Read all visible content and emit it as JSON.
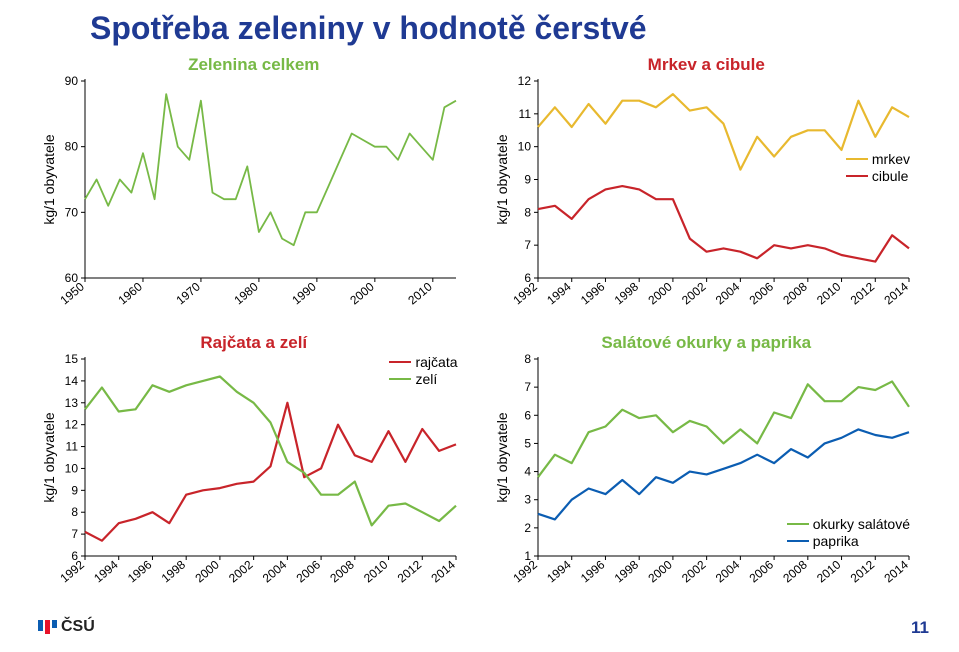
{
  "page": {
    "title": "Spotřeba zeleniny v hodnotě čerstvé",
    "number": "11",
    "footer_logo": "ČSÚ",
    "logo_bar_colors": [
      "#0b5db2",
      "#e8122a",
      "#0b5db2"
    ]
  },
  "colors": {
    "zelenina": "#77b946",
    "mrkev": "#e8b92f",
    "cibule": "#c8242a",
    "rajcata": "#c8242a",
    "zeli": "#77b946",
    "okurky": "#77b946",
    "paprika": "#0b5db2",
    "axis": "#000000",
    "background": "#ffffff"
  },
  "typography": {
    "title_fontsize": 32,
    "title_weight": 700,
    "chart_title_fontsize": 17,
    "axis_fontsize": 12,
    "y_title_fontsize": 14,
    "font_family": "Arial"
  },
  "chart1": {
    "type": "line",
    "title": "Zelenina celkem",
    "title_color": "#77b946",
    "y_title": "kg/1 obyvatele",
    "ylim": [
      60,
      90
    ],
    "ytick_step": 10,
    "x_ticks": [
      1950,
      1960,
      1970,
      1980,
      1990,
      2000,
      2010
    ],
    "x_range": [
      1950,
      2014
    ],
    "line_width": 1.8,
    "series": [
      {
        "name": "zelenina",
        "color": "#77b946",
        "x": [
          1950,
          1952,
          1954,
          1956,
          1958,
          1960,
          1962,
          1964,
          1966,
          1968,
          1970,
          1972,
          1974,
          1976,
          1978,
          1980,
          1982,
          1984,
          1986,
          1988,
          1990,
          1992,
          1994,
          1996,
          1998,
          2000,
          2002,
          2004,
          2006,
          2008,
          2010,
          2012,
          2014
        ],
        "y": [
          72,
          75,
          71,
          75,
          73,
          79,
          72,
          88,
          80,
          78,
          87,
          73,
          72,
          72,
          77,
          67,
          70,
          66,
          65,
          70,
          70,
          74,
          78,
          82,
          81,
          80,
          80,
          78,
          82,
          80,
          78,
          86,
          87
        ]
      }
    ]
  },
  "chart2": {
    "type": "line",
    "title": "Mrkev a cibule",
    "title_color": "#c8242a",
    "y_title": "kg/1 obyvatele",
    "ylim": [
      6,
      12
    ],
    "ytick_step": 1,
    "x_ticks": [
      1992,
      1994,
      1996,
      1998,
      2000,
      2002,
      2004,
      2006,
      2008,
      2010,
      2012,
      2014
    ],
    "x_range": [
      1992,
      2014
    ],
    "line_width": 2.2,
    "legend": {
      "mrkev": "mrkev",
      "cibule": "cibule",
      "pos": "right-mid"
    },
    "series": [
      {
        "name": "mrkev",
        "color": "#e8b92f",
        "x": [
          1992,
          1993,
          1994,
          1995,
          1996,
          1997,
          1998,
          1999,
          2000,
          2001,
          2002,
          2003,
          2004,
          2005,
          2006,
          2007,
          2008,
          2009,
          2010,
          2011,
          2012,
          2013,
          2014
        ],
        "y": [
          10.6,
          11.2,
          10.6,
          11.3,
          10.7,
          11.4,
          11.4,
          11.2,
          11.6,
          11.1,
          11.2,
          10.7,
          9.3,
          10.3,
          9.7,
          10.3,
          10.5,
          10.5,
          9.9,
          11.4,
          10.3,
          11.2,
          10.9
        ]
      },
      {
        "name": "cibule",
        "color": "#c8242a",
        "x": [
          1992,
          1993,
          1994,
          1995,
          1996,
          1997,
          1998,
          1999,
          2000,
          2001,
          2002,
          2003,
          2004,
          2005,
          2006,
          2007,
          2008,
          2009,
          2010,
          2011,
          2012,
          2013,
          2014
        ],
        "y": [
          8.1,
          8.2,
          7.8,
          8.4,
          8.7,
          8.8,
          8.7,
          8.4,
          8.4,
          7.2,
          6.8,
          6.9,
          6.8,
          6.6,
          7.0,
          6.9,
          7.0,
          6.9,
          6.7,
          6.6,
          6.5,
          7.3,
          6.9
        ]
      }
    ]
  },
  "chart3": {
    "type": "line",
    "title": "Rajčata a zelí",
    "title_color": "#c8242a",
    "y_title": "kg/1 obyvatele",
    "ylim": [
      6,
      15
    ],
    "ytick_step": 1,
    "x_ticks": [
      1992,
      1994,
      1996,
      1998,
      2000,
      2002,
      2004,
      2006,
      2008,
      2010,
      2012,
      2014
    ],
    "x_range": [
      1992,
      2014
    ],
    "line_width": 2.2,
    "legend": {
      "rajcata": "rajčata",
      "zeli": "zelí",
      "pos": "topright"
    },
    "series": [
      {
        "name": "rajcata",
        "color": "#c8242a",
        "x": [
          1992,
          1993,
          1994,
          1995,
          1996,
          1997,
          1998,
          1999,
          2000,
          2001,
          2002,
          2003,
          2004,
          2005,
          2006,
          2007,
          2008,
          2009,
          2010,
          2011,
          2012,
          2013,
          2014
        ],
        "y": [
          7.1,
          6.7,
          7.5,
          7.7,
          8.0,
          7.5,
          8.8,
          9.0,
          9.1,
          9.3,
          9.4,
          10.1,
          13.0,
          9.6,
          10.0,
          12.0,
          10.6,
          10.3,
          11.7,
          10.3,
          11.8,
          10.8,
          11.1
        ]
      },
      {
        "name": "zeli",
        "color": "#77b946",
        "x": [
          1992,
          1993,
          1994,
          1995,
          1996,
          1997,
          1998,
          1999,
          2000,
          2001,
          2002,
          2003,
          2004,
          2005,
          2006,
          2007,
          2008,
          2009,
          2010,
          2011,
          2012,
          2013,
          2014
        ],
        "y": [
          12.7,
          13.7,
          12.6,
          12.7,
          13.8,
          13.5,
          13.8,
          14.0,
          14.2,
          13.5,
          13.0,
          12.1,
          10.3,
          9.8,
          8.8,
          8.8,
          9.4,
          7.4,
          8.3,
          8.4,
          8.0,
          7.6,
          8.3
        ]
      }
    ]
  },
  "chart4": {
    "type": "line",
    "title": "Salátové okurky a paprika",
    "title_color": "#77b946",
    "y_title": "kg/1 obyvatele",
    "ylim": [
      1,
      8
    ],
    "ytick_step": 1,
    "x_ticks": [
      1992,
      1994,
      1996,
      1998,
      2000,
      2002,
      2004,
      2006,
      2008,
      2010,
      2012,
      2014
    ],
    "x_range": [
      1992,
      2014
    ],
    "line_width": 2.2,
    "legend": {
      "okurky": "okurky salátové",
      "paprika": "paprika",
      "pos": "bottomright"
    },
    "series": [
      {
        "name": "okurky",
        "color": "#77b946",
        "x": [
          1992,
          1993,
          1994,
          1995,
          1996,
          1997,
          1998,
          1999,
          2000,
          2001,
          2002,
          2003,
          2004,
          2005,
          2006,
          2007,
          2008,
          2009,
          2010,
          2011,
          2012,
          2013,
          2014
        ],
        "y": [
          3.8,
          4.6,
          4.3,
          5.4,
          5.6,
          6.2,
          5.9,
          6.0,
          5.4,
          5.8,
          5.6,
          5.0,
          5.5,
          5.0,
          6.1,
          5.9,
          7.1,
          6.5,
          6.5,
          7.0,
          6.9,
          7.2,
          6.3
        ]
      },
      {
        "name": "paprika",
        "color": "#0b5db2",
        "x": [
          1992,
          1993,
          1994,
          1995,
          1996,
          1997,
          1998,
          1999,
          2000,
          2001,
          2002,
          2003,
          2004,
          2005,
          2006,
          2007,
          2008,
          2009,
          2010,
          2011,
          2012,
          2013,
          2014
        ],
        "y": [
          2.5,
          2.3,
          3.0,
          3.4,
          3.2,
          3.7,
          3.2,
          3.8,
          3.6,
          4.0,
          3.9,
          4.1,
          4.3,
          4.6,
          4.3,
          4.8,
          4.5,
          5.0,
          5.2,
          5.5,
          5.3,
          5.2,
          5.4
        ]
      }
    ]
  }
}
